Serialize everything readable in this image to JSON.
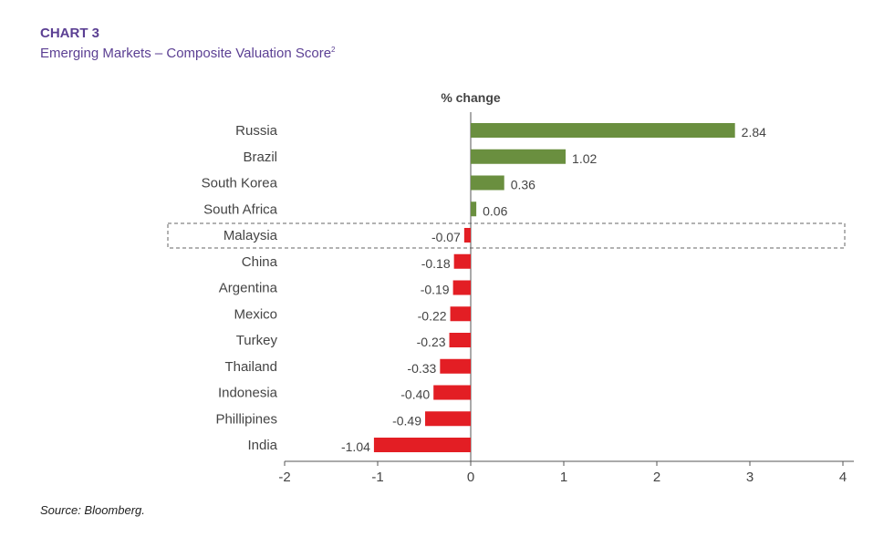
{
  "header": {
    "chart_number": "CHART 3",
    "title": "Emerging Markets – Composite Valuation Score",
    "footnote_marker": "2"
  },
  "source": "Source: Bloomberg.",
  "colors": {
    "positive": "#6a8f3f",
    "negative": "#e31e24",
    "title": "#5b3f93"
  },
  "chart_data": {
    "type": "bar",
    "orientation": "horizontal",
    "title": "Emerging Markets – Composite Valuation Score",
    "axis_title": "% change",
    "categories": [
      "Russia",
      "Brazil",
      "South Korea",
      "South Africa",
      "Malaysia",
      "China",
      "Argentina",
      "Mexico",
      "Turkey",
      "Thailand",
      "Indonesia",
      "Phillipines",
      "India"
    ],
    "values": [
      2.84,
      1.02,
      0.36,
      0.06,
      -0.07,
      -0.18,
      -0.19,
      -0.22,
      -0.23,
      -0.33,
      -0.4,
      -0.49,
      -1.04
    ],
    "value_labels": [
      "2.84",
      "1.02",
      "0.36",
      "0.06",
      "-0.07",
      "-0.18",
      "-0.19",
      "-0.22",
      "-0.23",
      "-0.33",
      "-0.40",
      "-0.49",
      "-1.04"
    ],
    "xlim": [
      -2,
      4
    ],
    "xticks": [
      -2,
      -1,
      0,
      1,
      2,
      3,
      4
    ],
    "xtick_labels": [
      "-2",
      "-1",
      "0",
      "1",
      "2",
      "3",
      "4"
    ],
    "highlighted_category": "Malaysia",
    "grid": false
  }
}
